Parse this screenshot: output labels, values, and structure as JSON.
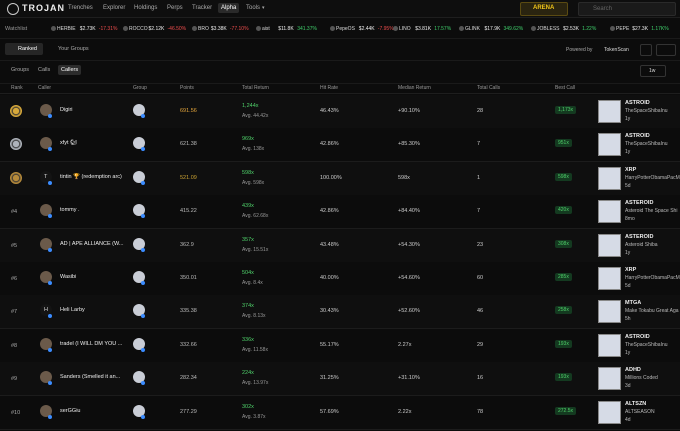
{
  "nav": {
    "logo": "TROJAN",
    "items": [
      "Trenches",
      "Explorer",
      "Holdings",
      "Perps",
      "Tracker",
      "Alpha",
      "Tools"
    ],
    "arena": "ARENA",
    "search": "Search"
  },
  "watchlist": {
    "label": "Watchlist",
    "items": [
      {
        "symbol": "HERBIE",
        "price": "$2.73K",
        "change": "-17.31%"
      },
      {
        "symbol": "ROCCO",
        "price": "$2.12K",
        "change": "-46.50%"
      },
      {
        "symbol": "BRO",
        "price": "$3.38K",
        "change": "-77.10%"
      },
      {
        "symbol": "aist",
        "price": "$11.8K",
        "change": "341.37%"
      },
      {
        "symbol": "PepeOS",
        "price": "$2.44K",
        "change": "-7.95%"
      },
      {
        "symbol": "LINO",
        "price": "$3.81K",
        "change": "17.57%"
      },
      {
        "symbol": "GLINK",
        "price": "$17.9K",
        "change": "349.62%"
      },
      {
        "symbol": "JOBLESS",
        "price": "$2.53K",
        "change": "1.22%"
      },
      {
        "symbol": "PEPE",
        "price": "$27.3K",
        "change": "1.17K%"
      }
    ]
  },
  "tabs": {
    "main": [
      "Ranked",
      "Your Groups"
    ],
    "powered_by": "Powered by",
    "provider": "TokenScan",
    "sub": [
      "Groups",
      "Calls",
      "Callers"
    ],
    "period": "1w"
  },
  "table": {
    "headers": [
      "Rank",
      "Caller",
      "Group",
      "Points",
      "Total Return",
      "Hit Rate",
      "Median Return",
      "Total Calls",
      "Best Call"
    ],
    "rows": [
      {
        "caller": "Digiri",
        "points": "691.56",
        "total_return": "1,244x",
        "avg": "Avg. 44.42x",
        "hit_rate": "46.43%",
        "median_return": "+90.10%",
        "total_calls": "28",
        "best_call": "1,173x",
        "token": {
          "symbol": "ASTROID",
          "name": "TheSpaceShibaInu",
          "age": "1y"
        }
      },
      {
        "caller": "xfyt 🐿",
        "points": "621.38",
        "total_return": "969x",
        "avg": "Avg. 138x",
        "hit_rate": "42.86%",
        "median_return": "+85.30%",
        "total_calls": "7",
        "best_call": "951x",
        "token": {
          "symbol": "ASTROID",
          "name": "TheSpaceShibaInu",
          "age": "1y"
        }
      },
      {
        "avatar": "T",
        "caller": "tintin 🏆 (redemption arc)",
        "points": "521.09",
        "total_return": "598x",
        "avg": "Avg. 598x",
        "hit_rate": "100.00%",
        "median_return": "598x",
        "total_calls": "1",
        "best_call": "598x",
        "token": {
          "symbol": "XRP",
          "name": "HarryPotterObamaPacMan",
          "age": "5d"
        }
      },
      {
        "rank": "#4",
        "caller": "tommy .",
        "points": "415.22",
        "total_return": "439x",
        "avg": "Avg. 62.68x",
        "hit_rate": "42.86%",
        "median_return": "+84.40%",
        "total_calls": "7",
        "best_call": "420x",
        "token": {
          "symbol": "ASTEROID",
          "name": "Asteroid The Space Shi",
          "age": "8mo"
        }
      },
      {
        "rank": "#5",
        "caller": "AD | APE ALLIANCE (W...",
        "points": "362.9",
        "total_return": "357x",
        "avg": "Avg. 15.51x",
        "hit_rate": "43.48%",
        "median_return": "+54.30%",
        "total_calls": "23",
        "best_call": "308x",
        "token": {
          "symbol": "ASTEROID",
          "name": "Asteroid Shiba",
          "age": "1y"
        }
      },
      {
        "rank": "#6",
        "caller": "Wasibi",
        "points": "350.01",
        "total_return": "504x",
        "avg": "Avg. 8.4x",
        "hit_rate": "40.00%",
        "median_return": "+54.60%",
        "total_calls": "60",
        "best_call": "285x",
        "token": {
          "symbol": "XRP",
          "name": "HarryPotterObamaPacMan",
          "age": "5d"
        }
      },
      {
        "rank": "#7",
        "avatar": "H",
        "caller": "Heli Larby",
        "points": "335.38",
        "total_return": "374x",
        "avg": "Avg. 8.13x",
        "hit_rate": "30.43%",
        "median_return": "+52.60%",
        "total_calls": "46",
        "best_call": "258x",
        "token": {
          "symbol": "MTGA",
          "name": "Make Tokabu Great Aga",
          "age": "5h"
        }
      },
      {
        "rank": "#8",
        "caller": "tradel (I WILL DM YOU ...",
        "points": "332.66",
        "total_return": "336x",
        "avg": "Avg. 11.58x",
        "hit_rate": "55.17%",
        "median_return": "2.27x",
        "total_calls": "29",
        "best_call": "193x",
        "token": {
          "symbol": "ASTROID",
          "name": "TheSpaceShibaInu",
          "age": "1y"
        }
      },
      {
        "rank": "#9",
        "caller": "Sanders (Smelled it an...",
        "points": "282.34",
        "total_return": "224x",
        "avg": "Avg. 13.97x",
        "hit_rate": "31.25%",
        "median_return": "+31.10%",
        "total_calls": "16",
        "best_call": "193x",
        "token": {
          "symbol": "ADHD",
          "name": "Millions Coded",
          "age": "3d"
        }
      },
      {
        "rank": "#10",
        "caller": "serGGiu",
        "points": "277.29",
        "total_return": "302x",
        "avg": "Avg. 3.87x",
        "hit_rate": "57.69%",
        "median_return": "2.22x",
        "total_calls": "78",
        "best_call": "272.5x",
        "token": {
          "symbol": "ALTSZN",
          "name": "ALTSEASON",
          "age": "4d"
        }
      }
    ]
  }
}
